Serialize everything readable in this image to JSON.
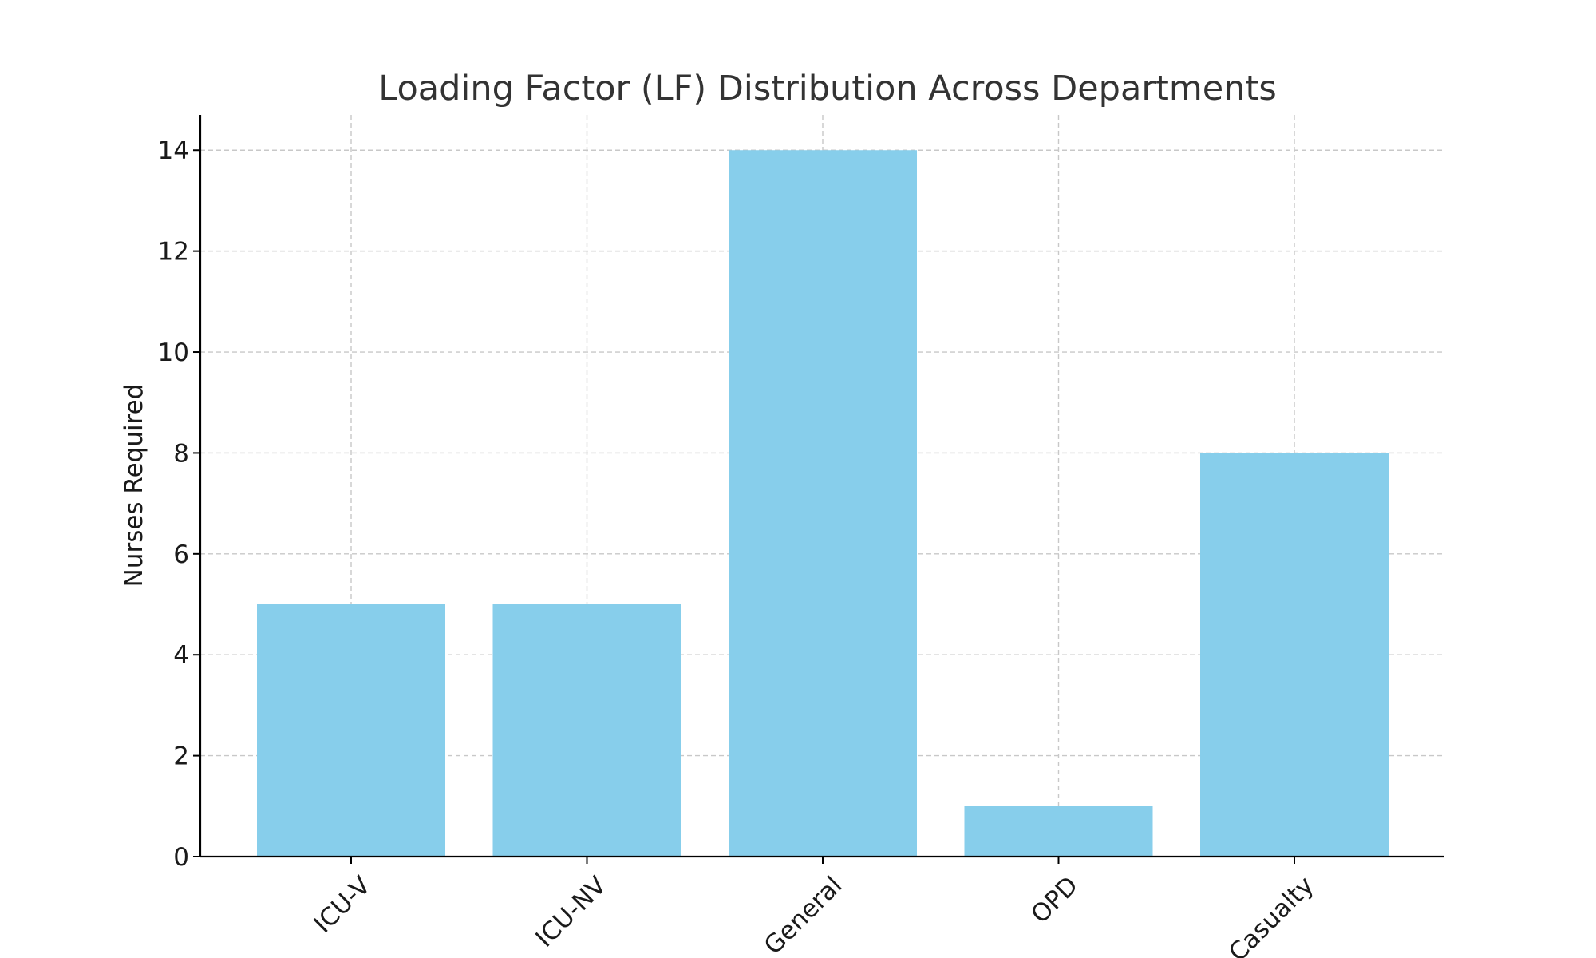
{
  "chart_data": {
    "type": "bar",
    "title": "Loading Factor (LF) Distribution Across Departments",
    "xlabel": "",
    "ylabel": "Nurses Required",
    "categories": [
      "ICU-V",
      "ICU-NV",
      "General",
      "OPD",
      "Casualty"
    ],
    "values": [
      5,
      5,
      14,
      1,
      8
    ],
    "ylim": [
      0,
      14.7
    ],
    "yticks": [
      "0",
      "2",
      "4",
      "6",
      "8",
      "10",
      "12",
      "14"
    ],
    "grid": true,
    "bar_color": "#87CEEB"
  }
}
